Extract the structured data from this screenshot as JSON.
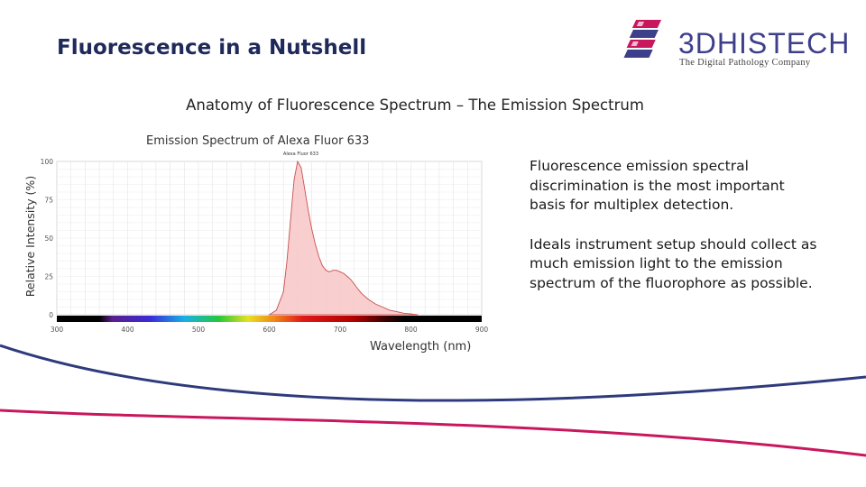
{
  "slide": {
    "title": "Fluorescence in a Nutshell",
    "subtitle": "Anatomy of Fluorescence Spectrum – The Emission Spectrum"
  },
  "logo": {
    "name": "3DHISTECH",
    "tagline": "The Digital Pathology Company",
    "icon": "3dhistech-slides-icon",
    "colors": {
      "primary": "#3d3f8a",
      "accent": "#c8175d"
    }
  },
  "chart": {
    "title": "Emission Spectrum of Alexa Fluor 633",
    "ylabel": "Relative Intensity (%)",
    "xlabel": "Wavelength (nm)"
  },
  "chart_data": {
    "type": "area",
    "title": "Emission Spectrum of Alexa Fluor 633",
    "xlabel": "Wavelength (nm)",
    "ylabel": "Relative Intensity (%)",
    "xlim": [
      300,
      900
    ],
    "ylim": [
      0,
      100
    ],
    "x_ticks": [
      "300",
      "400",
      "500",
      "600",
      "700",
      "800",
      "900"
    ],
    "y_ticks": [
      "0",
      "25",
      "50",
      "75",
      "100"
    ],
    "grid": true,
    "peak_label": "Alexa Fluor 633",
    "series": [
      {
        "fill": "#f7c6c6",
        "stroke": "#c85050",
        "x": [
          600,
          610,
          620,
          625,
          630,
          635,
          640,
          645,
          650,
          655,
          660,
          665,
          670,
          675,
          680,
          685,
          690,
          695,
          700,
          705,
          710,
          715,
          720,
          725,
          730,
          740,
          750,
          760,
          770,
          780,
          790,
          800,
          810
        ],
        "y": [
          0,
          3,
          15,
          35,
          62,
          88,
          100,
          96,
          82,
          68,
          56,
          46,
          38,
          32,
          29,
          28,
          29,
          29,
          28,
          27,
          25,
          23,
          20,
          17,
          14,
          10,
          7,
          5,
          3,
          2,
          1,
          0.5,
          0
        ]
      }
    ]
  },
  "text": {
    "paragraph1": "Fluorescence emission spectral discrimination is the most important basis for multiplex detection.",
    "paragraph2": "Ideals instrument setup should collect as much emission light to the emission spectrum of the fluorophore as possible."
  },
  "decoration": {
    "swoosh_colors": [
      "#2e3a7c",
      "#c8175d"
    ]
  }
}
